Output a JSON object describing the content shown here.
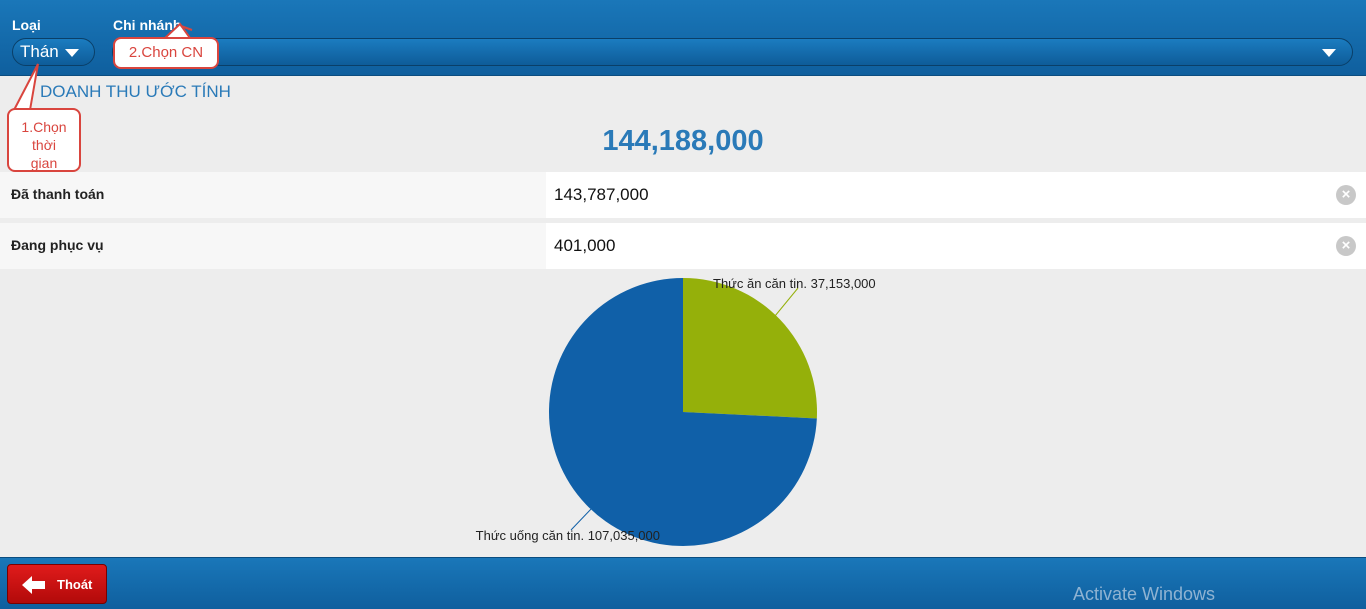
{
  "header": {
    "type_label": "Loại",
    "type_value": "Thán",
    "branch_label": "Chi nhánh"
  },
  "callouts": {
    "branch": "2.Chọn CN",
    "time_lines": [
      "1.Chọn",
      "thời",
      "gian"
    ]
  },
  "summary": {
    "title": "DOANH THU ƯỚC TÍNH",
    "total": "144,188,000"
  },
  "rows": [
    {
      "label": "Đã thanh toán",
      "value": "143,787,000"
    },
    {
      "label": "Đang phục vụ",
      "value": "401,000"
    }
  ],
  "chart_data": {
    "type": "pie",
    "slices": [
      {
        "label": "Thức ăn căn tin. 37,153,000",
        "value": 37153000,
        "color": "#95b00a"
      },
      {
        "label": "Thức uống căn tin. 107,035,000",
        "value": 107035000,
        "color": "#1060a8"
      }
    ]
  },
  "footer": {
    "exit_label": "Thoát",
    "watermark": "Activate Windows"
  },
  "icons": {
    "clear": "clear-icon",
    "dropdown": "chevron-down-icon",
    "exit": "arrow-left-icon"
  },
  "colors": {
    "header": "#1a77b9",
    "accent_text": "#2a7ab8",
    "callout": "#d9453e",
    "exit_button": "#d41414"
  }
}
